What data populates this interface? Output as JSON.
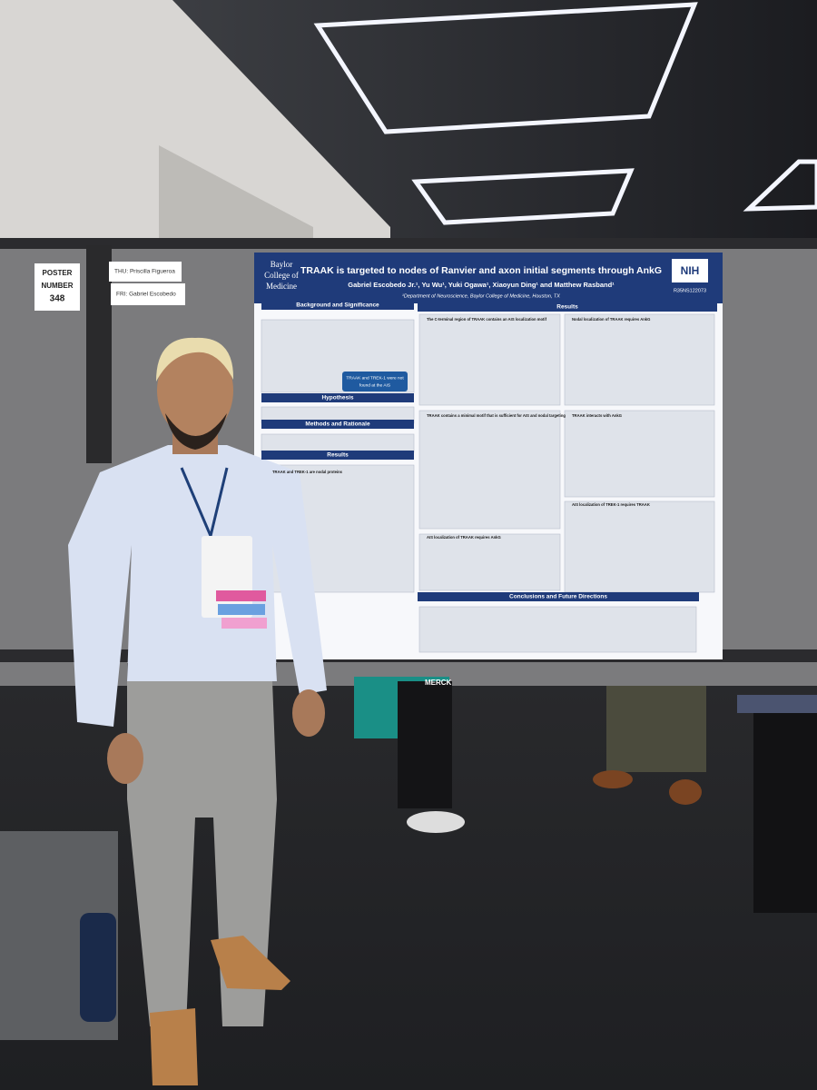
{
  "sign": {
    "lines": [
      "POSTER",
      "NUMBER",
      "348"
    ]
  },
  "name_cards": [
    "THU: Priscilla Figueroa",
    "FRI: Gabriel Escobedo"
  ],
  "poster": {
    "institution": [
      "Baylor",
      "College of",
      "Medicine"
    ],
    "title": "TRAAK is targeted to nodes of Ranvier and axon initial segments through AnkG",
    "authors": "Gabriel Escobedo Jr.¹, Yu Wu¹, Yuki Ogawa¹, Xiaoyun Ding¹ and Matthew Rasband¹",
    "affiliation": "¹Department of Neuroscience, Baylor College of Medicine, Houston, TX",
    "funder": "NIH",
    "grant": "R35NS122073",
    "sections": [
      "Background and Significance",
      "Hypothesis",
      "Methods and Rationale",
      "Results",
      "Results",
      "Conclusions and Future Directions"
    ],
    "panels": [
      "The C-terminal region of TRAAK contains an AIS localization motif",
      "Nodal localization of TRAAK requires AnkG",
      "TRAAK contains a minimal motif that is sufficient for AIS and nodal targeting",
      "TRAAK interacts with AnkG",
      "AIS localization of TRAAK requires AnkG",
      "AIS localization of TREK-1 requires TRAAK",
      "TRAAK and TREK-1 are nodal proteins"
    ],
    "notes": [
      "TRAAK and TREK-1 were not",
      "found at the AIS"
    ]
  },
  "bag": "MERCK"
}
